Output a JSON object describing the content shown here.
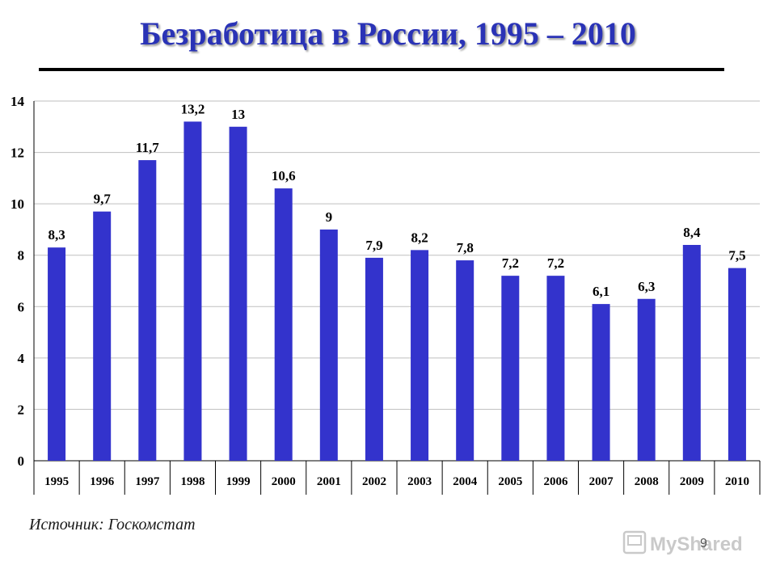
{
  "slide": {
    "title": "Безработица в России, 1995 – 2010",
    "source": "Источник: Госкомстат",
    "page_number": "9",
    "watermark": "MyShared"
  },
  "colors": {
    "bar": "#3333cc",
    "title": "#2a33b6",
    "axis": "#000000",
    "grid": "#bfbfbf"
  },
  "chart_data": {
    "type": "bar",
    "categories": [
      "1995",
      "1996",
      "1997",
      "1998",
      "1999",
      "2000",
      "2001",
      "2002",
      "2003",
      "2004",
      "2005",
      "2006",
      "2007",
      "2008",
      "2009",
      "2010"
    ],
    "values": [
      8.3,
      9.7,
      11.7,
      13.2,
      13,
      10.6,
      9,
      7.9,
      8.2,
      7.8,
      7.2,
      7.2,
      6.1,
      6.3,
      8.4,
      7.5
    ],
    "value_labels": [
      "8,3",
      "9,7",
      "11,7",
      "13,2",
      "13",
      "10,6",
      "9",
      "7,9",
      "8,2",
      "7,8",
      "7,2",
      "7,2",
      "6,1",
      "6,3",
      "8,4",
      "7,5"
    ],
    "y_ticks": [
      0,
      2,
      4,
      6,
      8,
      10,
      12,
      14
    ],
    "ylim": [
      0,
      14
    ],
    "grid": true,
    "legend": false
  }
}
